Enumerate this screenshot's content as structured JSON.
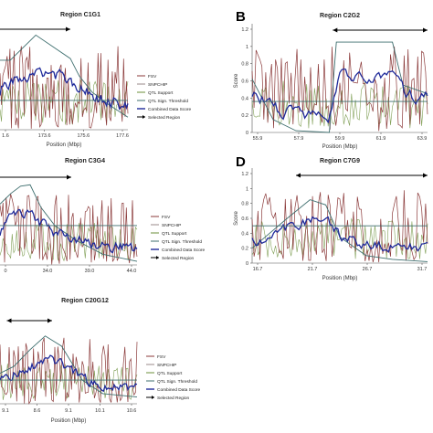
{
  "colors": {
    "fsv": "#8b3a3a",
    "snpchip": "#9a8a8a",
    "qtl_support": "#6b8f3a",
    "qtl_threshold": "#3f6f6f",
    "combined": "#1f2a9a",
    "selected": "#000000",
    "axis": "#555555"
  },
  "chart_data": [
    {
      "panel": "A",
      "panel_letter": "",
      "type": "line",
      "title": "Region C1G1",
      "xlabel": "Position (Mbp)",
      "ylabel": "",
      "xticks": [
        "1.6",
        "173.6",
        "175.6",
        "177.6"
      ],
      "yticks": [],
      "ylim": [
        0,
        1.2
      ],
      "grid": false,
      "legend": [
        "FSV",
        "SNPCHIP",
        "QTL Support",
        "QTL Sign. Threshold",
        "Combined Data Score",
        "Selected Region"
      ],
      "threshold": 0.35,
      "selected_region": [
        0.0,
        0.55
      ],
      "qtl_support": [
        [
          0,
          0.83
        ],
        [
          0.08,
          0.83
        ],
        [
          0.28,
          1.13
        ],
        [
          0.55,
          0.85
        ],
        [
          0.62,
          0.64
        ],
        [
          0.72,
          0.45
        ],
        [
          0.85,
          0.3
        ],
        [
          1,
          0.15
        ]
      ],
      "seed": 11
    },
    {
      "panel": "B",
      "panel_letter": "B",
      "type": "line",
      "title": "Region C2G2",
      "xlabel": "Position (Mbp)",
      "ylabel": "Score",
      "xticks": [
        "55.9",
        "57.9",
        "59.9",
        "61.9",
        "63.9"
      ],
      "yticks": [
        "0",
        "0.2",
        "0.4",
        "0.6",
        "0.8",
        "1",
        "1.2"
      ],
      "ylim": [
        0,
        1.2
      ],
      "grid": false,
      "legend": [],
      "threshold": 0.36,
      "selected_region": [
        0.46,
        1.0
      ],
      "qtl_support": [
        [
          0,
          0.62
        ],
        [
          0.12,
          0.15
        ],
        [
          0.25,
          0.02
        ],
        [
          0.44,
          0.0
        ],
        [
          0.48,
          1.05
        ],
        [
          0.8,
          1.05
        ],
        [
          0.86,
          0.55
        ],
        [
          1,
          0.45
        ]
      ],
      "seed": 23
    },
    {
      "panel": "C",
      "panel_letter": "",
      "type": "line",
      "title": "Region C3G4",
      "xlabel": "",
      "ylabel": "",
      "xticks": [
        "0",
        "34.0",
        "39.0",
        "44.0"
      ],
      "yticks": [],
      "ylim": [
        0,
        1.2
      ],
      "grid": false,
      "legend": [
        "FSV",
        "SNPCHIP",
        "QTL Support",
        "QTL Sign. Threshold",
        "Combined Data Score",
        "Selected Region"
      ],
      "threshold": 0.55,
      "selected_region": [
        0.0,
        0.52
      ],
      "qtl_support": [
        [
          0,
          0.85
        ],
        [
          0.08,
          1.0
        ],
        [
          0.15,
          1.1
        ],
        [
          0.22,
          1.12
        ],
        [
          0.3,
          0.8
        ],
        [
          0.4,
          0.55
        ],
        [
          0.55,
          0.35
        ],
        [
          0.75,
          0.15
        ],
        [
          1,
          0.05
        ]
      ],
      "seed": 37
    },
    {
      "panel": "D",
      "panel_letter": "D",
      "type": "line",
      "title": "Region C7G9",
      "xlabel": "Position (Mbp)",
      "ylabel": "Score",
      "xticks": [
        "16.7",
        "21.7",
        "26.7",
        "31.7"
      ],
      "yticks": [
        "0",
        "0.2",
        "0.4",
        "0.6",
        "0.8",
        "1",
        "1.2"
      ],
      "ylim": [
        0,
        1.2
      ],
      "grid": false,
      "legend": [],
      "threshold": 0.5,
      "selected_region": [
        0.25,
        1.0
      ],
      "qtl_support": [
        [
          0,
          0.2
        ],
        [
          0.1,
          0.4
        ],
        [
          0.2,
          0.6
        ],
        [
          0.33,
          0.85
        ],
        [
          0.42,
          0.78
        ],
        [
          0.5,
          0.35
        ],
        [
          0.65,
          0.1
        ],
        [
          0.8,
          0.05
        ],
        [
          1,
          0.02
        ]
      ],
      "seed": 53
    },
    {
      "panel": "E",
      "panel_letter": "",
      "type": "line",
      "title": "Region C20G12",
      "xlabel": "Position (Mbp)",
      "ylabel": "",
      "xticks": [
        "9.1",
        "8.6",
        "9.1",
        "10.1",
        "10.6"
      ],
      "yticks": [],
      "ylim": [
        0,
        1.2
      ],
      "grid": false,
      "legend": [
        "FSV",
        "SNPCHIP",
        "QTL Support",
        "QTL Sign. Threshold",
        "Combined Data Score",
        "Selected Region"
      ],
      "threshold": 0.35,
      "selected_region": [
        0.05,
        0.38
      ],
      "qtl_support": [
        [
          0,
          0.45
        ],
        [
          0.1,
          0.55
        ],
        [
          0.22,
          0.8
        ],
        [
          0.33,
          1.0
        ],
        [
          0.45,
          0.85
        ],
        [
          0.6,
          0.35
        ],
        [
          0.75,
          0.15
        ],
        [
          1,
          0.1
        ]
      ],
      "seed": 71
    }
  ]
}
